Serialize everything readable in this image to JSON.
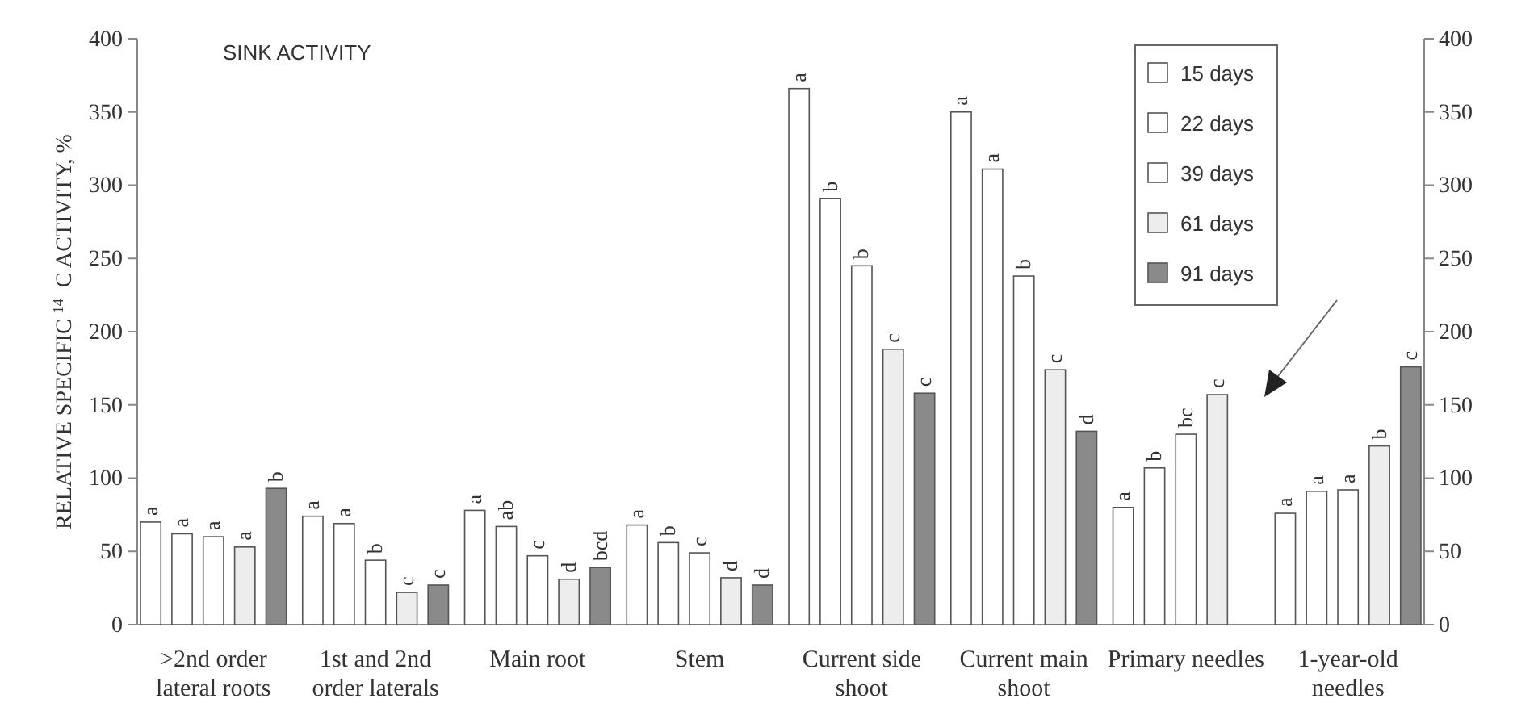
{
  "chart_data": {
    "type": "bar",
    "title": "SINK ACTIVITY",
    "ylabel": "RELATIVE SPECIFIC $^{14}$C ACTIVITY, %",
    "categories": [
      ">2nd order lateral roots",
      "1st and 2nd order laterals",
      "Main root",
      "Stem",
      "Current side shoot",
      "Current main shoot",
      "Primary needles",
      "1-year-old needles"
    ],
    "series": [
      {
        "name": "15 days",
        "color": "#ffffff",
        "values": [
          70,
          74,
          78,
          68,
          366,
          350,
          80,
          76
        ],
        "value_labels": [
          "a",
          "a",
          "a",
          "a",
          "a",
          "a",
          "a",
          "a"
        ]
      },
      {
        "name": "22 days",
        "color": "#ffffff",
        "values": [
          62,
          69,
          67,
          56,
          291,
          311,
          107,
          91
        ],
        "value_labels": [
          "a",
          "a",
          "ab",
          "b",
          "b",
          "a",
          "b",
          "a"
        ]
      },
      {
        "name": "39 days",
        "color": "#ffffff",
        "values": [
          60,
          44,
          47,
          49,
          245,
          238,
          130,
          92
        ],
        "value_labels": [
          "a",
          "b",
          "c",
          "c",
          "b",
          "b",
          "bc",
          "a"
        ]
      },
      {
        "name": "61 days",
        "color": "#ededed",
        "values": [
          53,
          22,
          31,
          32,
          188,
          174,
          157,
          122
        ],
        "value_labels": [
          "a",
          "c",
          "d",
          "d",
          "c",
          "c",
          "c",
          "b"
        ]
      },
      {
        "name": "91 days",
        "color": "#8a8a8a",
        "values": [
          93,
          27,
          39,
          27,
          158,
          132,
          null,
          176
        ],
        "value_labels": [
          "b",
          "c",
          "bcd",
          "d",
          "c",
          "d",
          null,
          "c"
        ]
      }
    ],
    "ylim": [
      0,
      400
    ],
    "yticks": [
      0,
      50,
      100,
      150,
      200,
      250,
      300,
      350,
      400
    ],
    "y2lim": [
      0,
      400
    ],
    "y2ticks": [
      0,
      50,
      100,
      150,
      200,
      250,
      300,
      350,
      400
    ],
    "legend": "top right",
    "grid": false
  }
}
